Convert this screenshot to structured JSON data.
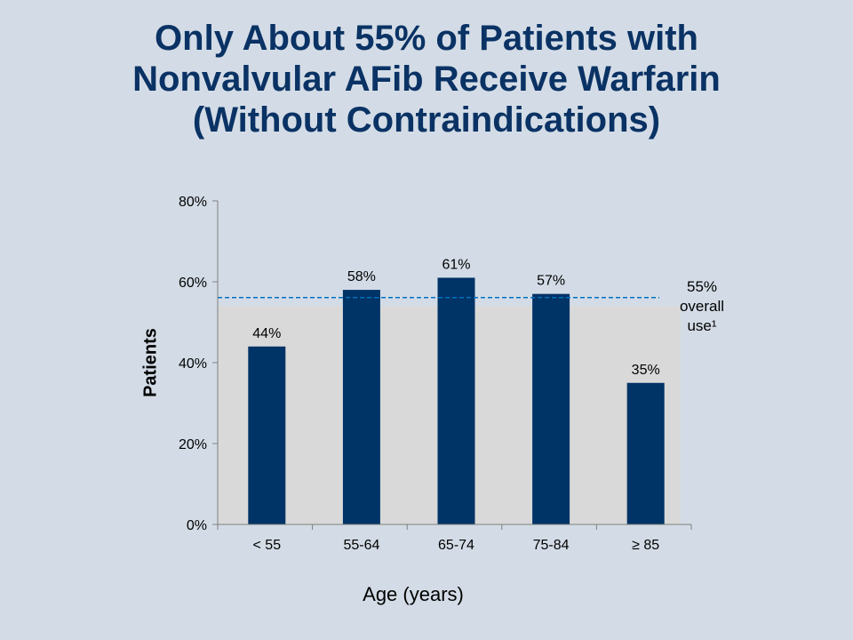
{
  "title": {
    "line1": "Only About 55% of Patients with",
    "line2": "Nonvalvular AFib Receive Warfarin",
    "line3": "(Without Contraindications)"
  },
  "colors": {
    "background": "#d3dce6",
    "plot_area": "#d9d9d9",
    "bar": "#003366",
    "reference_line": "#0070c0"
  },
  "chart_data": {
    "type": "bar",
    "categories": [
      "< 55",
      "55-64",
      "65-74",
      "75-84",
      "≥ 85"
    ],
    "values": [
      44,
      58,
      61,
      57,
      35
    ],
    "data_labels": [
      "44%",
      "58%",
      "61%",
      "57%",
      "35%"
    ],
    "xlabel": "Age (years)",
    "ylabel": "Patients",
    "ylim": [
      0,
      80
    ],
    "yticks": [
      0,
      20,
      40,
      60,
      80
    ],
    "ytick_labels": [
      "0%",
      "20%",
      "40%",
      "60%",
      "80%"
    ],
    "reference_line": {
      "value": 55,
      "style": "dashed",
      "label_lines": [
        "55%",
        "overall",
        "use¹"
      ]
    },
    "grid": false,
    "legend": "none"
  }
}
